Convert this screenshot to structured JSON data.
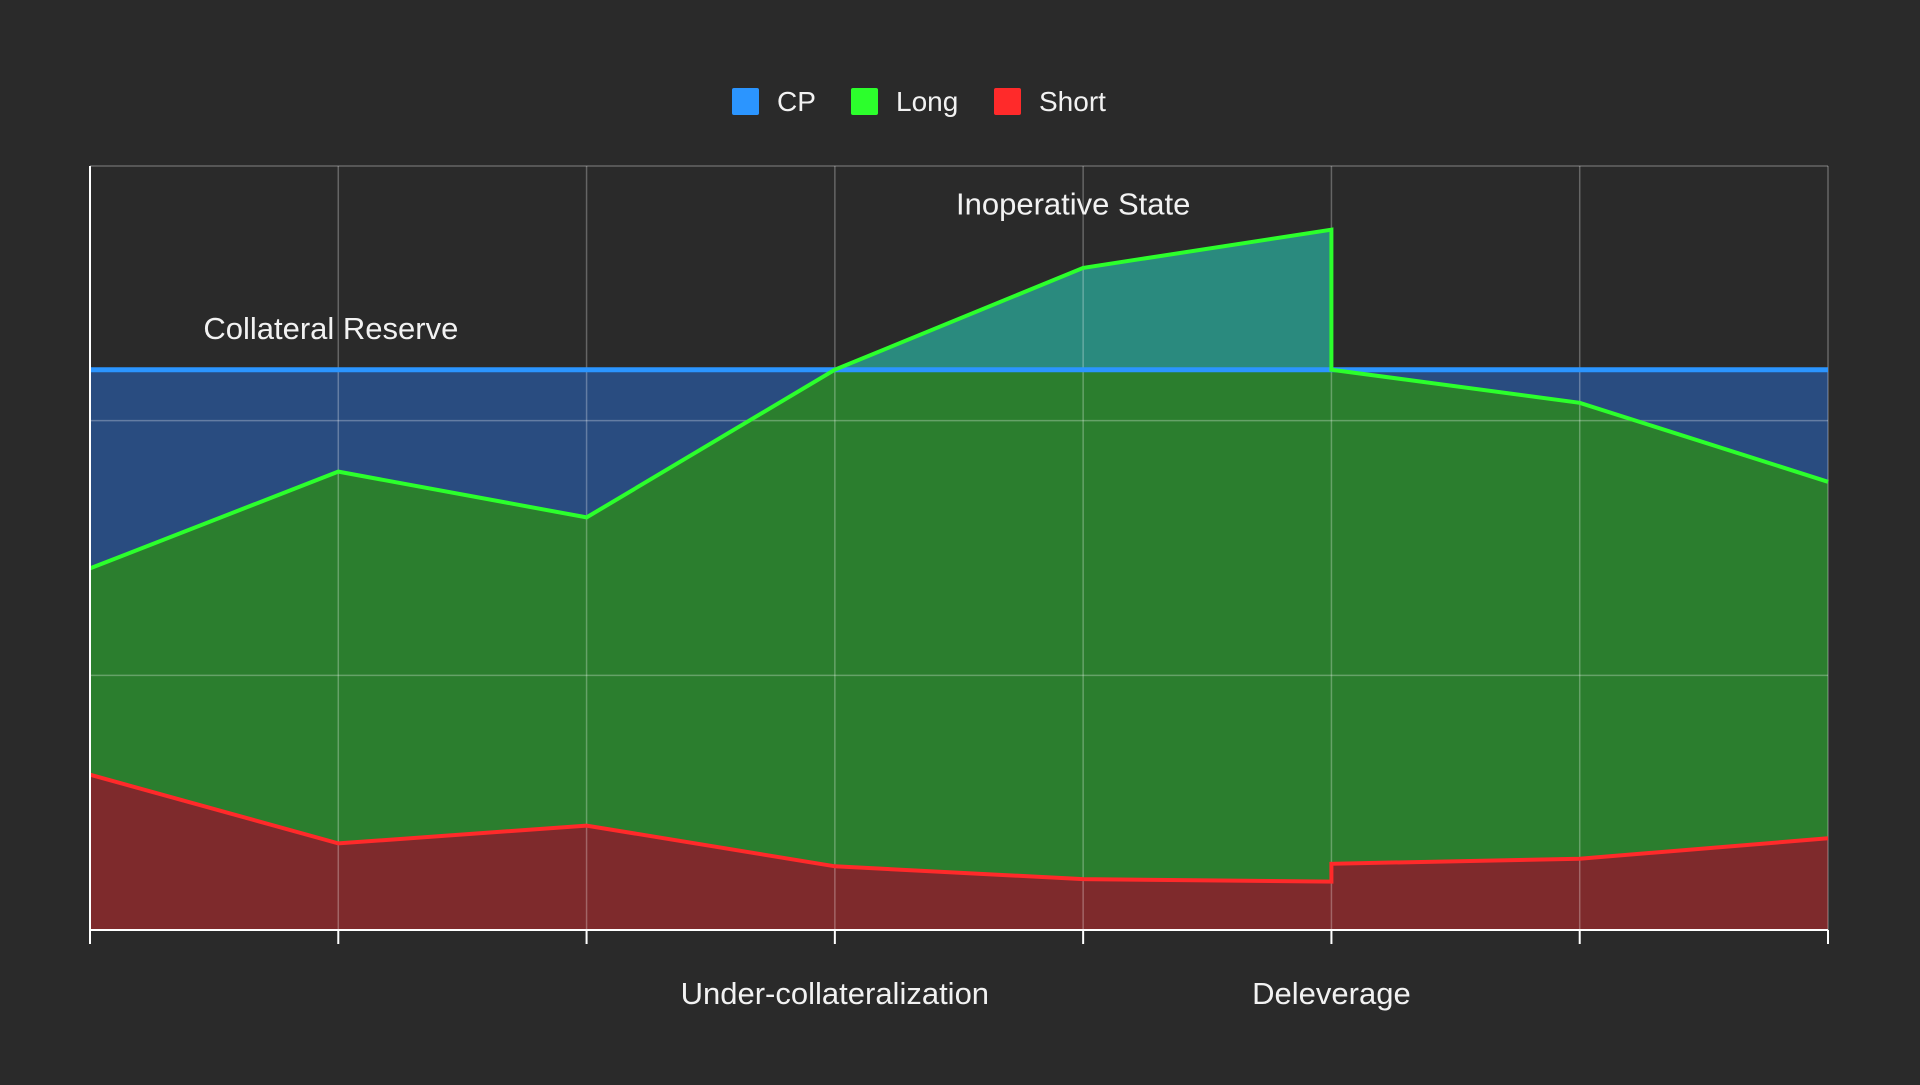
{
  "chart_data": {
    "type": "area",
    "x": [
      0,
      1,
      2,
      3,
      4,
      5,
      6,
      7
    ],
    "ylim": [
      0,
      30
    ],
    "grid": true,
    "legend_position": "top-center",
    "series": [
      {
        "name": "CP",
        "color": "#2b95ff",
        "fill": "#294c80",
        "points": [
          [
            0,
            22
          ],
          [
            7,
            22
          ]
        ]
      },
      {
        "name": "Long",
        "color": "#2cff2c",
        "fill": "#2b7e2e",
        "overflow_fill": "#2a8a7e",
        "points": [
          [
            0,
            14.2
          ],
          [
            1,
            18.0
          ],
          [
            2,
            16.2
          ],
          [
            3,
            22.0
          ],
          [
            4,
            26.0
          ],
          [
            5,
            27.5
          ],
          [
            5,
            22.0
          ],
          [
            6,
            20.7
          ],
          [
            7,
            17.6
          ]
        ]
      },
      {
        "name": "Short",
        "color": "#ff2a2a",
        "fill": "#7e2a2c",
        "points": [
          [
            0,
            6.1
          ],
          [
            1,
            3.4
          ],
          [
            2,
            4.1
          ],
          [
            3,
            2.5
          ],
          [
            4,
            2.0
          ],
          [
            5,
            1.9
          ],
          [
            5,
            2.6
          ],
          [
            6,
            2.8
          ],
          [
            7,
            3.6
          ]
        ]
      }
    ],
    "annotations": [
      {
        "text": "Collateral Reserve",
        "x": 0.97,
        "y": 23.2
      },
      {
        "text": "Inoperative State",
        "x": 3.96,
        "y": 28.1
      }
    ],
    "x_labels": [
      {
        "text": "Under-collateralization",
        "x": 3.0
      },
      {
        "text": "Deleverage",
        "x": 5.0
      }
    ]
  }
}
